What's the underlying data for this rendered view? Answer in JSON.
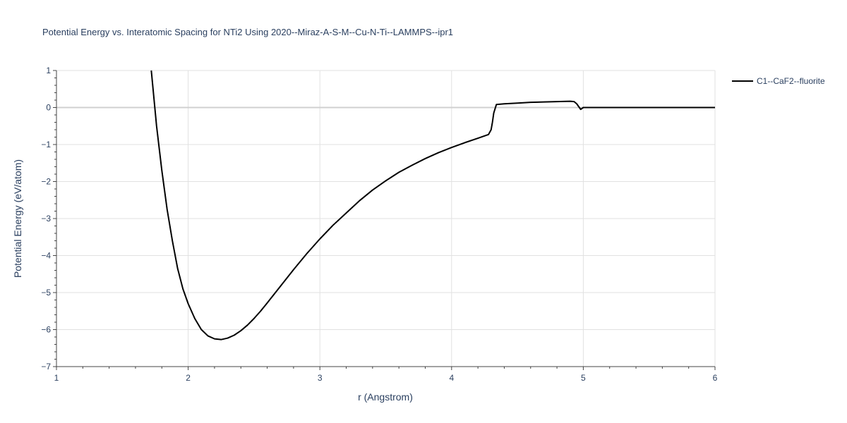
{
  "chart_data": {
    "type": "line",
    "title": "Potential Energy vs. Interatomic Spacing for NTi2 Using 2020--Miraz-A-S-M--Cu-N-Ti--LAMMPS--ipr1",
    "xlabel": "r (Angstrom)",
    "ylabel": "Potential Energy (eV/atom)",
    "xlim": [
      1,
      6
    ],
    "ylim": [
      -7,
      1
    ],
    "xticks": [
      1,
      2,
      3,
      4,
      5,
      6
    ],
    "yticks": [
      1,
      0,
      -1,
      -2,
      -3,
      -4,
      -5,
      -6,
      -7
    ],
    "xtick_labels": [
      "1",
      "2",
      "3",
      "4",
      "5",
      "6"
    ],
    "ytick_labels": [
      "1",
      "0",
      "−1",
      "−2",
      "−3",
      "−4",
      "−5",
      "−6",
      "−7"
    ],
    "grid": true,
    "legend_position": "top-right",
    "series": [
      {
        "name": "C1--CaF2--fluorite",
        "color": "#000000",
        "x": [
          1.72,
          1.76,
          1.8,
          1.84,
          1.88,
          1.92,
          1.96,
          2.0,
          2.05,
          2.1,
          2.15,
          2.2,
          2.25,
          2.3,
          2.35,
          2.4,
          2.45,
          2.5,
          2.55,
          2.6,
          2.7,
          2.8,
          2.9,
          3.0,
          3.1,
          3.2,
          3.3,
          3.4,
          3.5,
          3.6,
          3.7,
          3.8,
          3.9,
          4.0,
          4.1,
          4.2,
          4.28,
          4.3,
          4.31,
          4.32,
          4.34,
          4.4,
          4.5,
          4.6,
          4.7,
          4.8,
          4.9,
          4.93,
          4.95,
          4.97,
          4.98,
          5.0,
          5.1,
          5.5,
          6.0
        ],
        "y": [
          1.0,
          -0.5,
          -1.7,
          -2.75,
          -3.6,
          -4.35,
          -4.9,
          -5.3,
          -5.7,
          -6.0,
          -6.17,
          -6.25,
          -6.27,
          -6.23,
          -6.15,
          -6.03,
          -5.88,
          -5.7,
          -5.5,
          -5.28,
          -4.83,
          -4.38,
          -3.95,
          -3.55,
          -3.18,
          -2.85,
          -2.52,
          -2.23,
          -1.98,
          -1.75,
          -1.56,
          -1.38,
          -1.22,
          -1.08,
          -0.95,
          -0.83,
          -0.73,
          -0.6,
          -0.4,
          -0.15,
          0.08,
          0.1,
          0.12,
          0.14,
          0.15,
          0.16,
          0.17,
          0.16,
          0.1,
          0.0,
          -0.05,
          0.0,
          0.0,
          0.0,
          0.0
        ]
      }
    ]
  }
}
